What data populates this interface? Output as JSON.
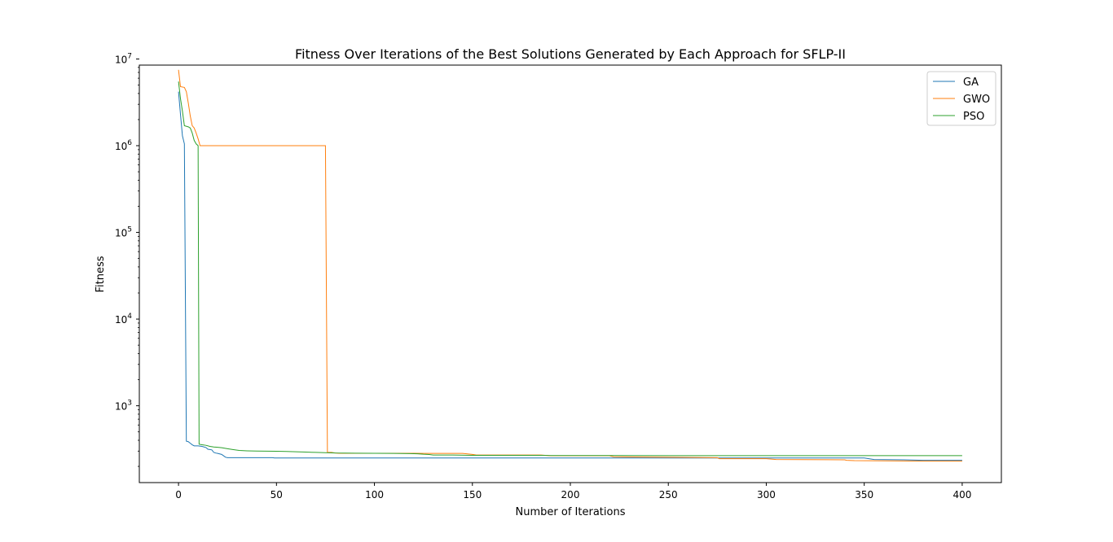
{
  "chart_data": {
    "type": "line",
    "title": "Fitness Over Iterations of the Best Solutions Generated by Each Approach for SFLP-II",
    "xlabel": "Number of Iterations",
    "ylabel": "Fitness",
    "xlim": [
      -20,
      420
    ],
    "ylim": [
      130,
      8500000
    ],
    "yscale": "log",
    "xticks": [
      0,
      50,
      100,
      150,
      200,
      250,
      300,
      350,
      400
    ],
    "xtick_labels": [
      "0",
      "50",
      "100",
      "150",
      "200",
      "250",
      "300",
      "350",
      "400"
    ],
    "yticks": [
      1000,
      10000,
      100000,
      1000000,
      10000000
    ],
    "ytick_labels": [
      {
        "base": "10",
        "exp": "3"
      },
      {
        "base": "10",
        "exp": "4"
      },
      {
        "base": "10",
        "exp": "5"
      },
      {
        "base": "10",
        "exp": "6"
      },
      {
        "base": "10",
        "exp": "7"
      }
    ],
    "grid": false,
    "legend_position": "top-right",
    "series": [
      {
        "name": "GA",
        "color": "#1f77b4",
        "points": [
          [
            0,
            4200000
          ],
          [
            1,
            2300000
          ],
          [
            2,
            1300000
          ],
          [
            3,
            1050000
          ],
          [
            4,
            390
          ],
          [
            5,
            385
          ],
          [
            6,
            370
          ],
          [
            7,
            355
          ],
          [
            8,
            345
          ],
          [
            10,
            345
          ],
          [
            12,
            340
          ],
          [
            14,
            330
          ],
          [
            15,
            315
          ],
          [
            17,
            310
          ],
          [
            18,
            290
          ],
          [
            19,
            285
          ],
          [
            20,
            282
          ],
          [
            22,
            275
          ],
          [
            23,
            265
          ],
          [
            24,
            255
          ],
          [
            25,
            252
          ],
          [
            48,
            252
          ],
          [
            49,
            250
          ],
          [
            350,
            250
          ],
          [
            355,
            240
          ],
          [
            370,
            238
          ],
          [
            380,
            235
          ],
          [
            400,
            235
          ]
        ]
      },
      {
        "name": "GWO",
        "color": "#ff7f0e",
        "points": [
          [
            0,
            7500000
          ],
          [
            1,
            4800000
          ],
          [
            3,
            4700000
          ],
          [
            4,
            4200000
          ],
          [
            5,
            3100000
          ],
          [
            6,
            2200000
          ],
          [
            7,
            1700000
          ],
          [
            8,
            1600000
          ],
          [
            9,
            1400000
          ],
          [
            10,
            1200000
          ],
          [
            11,
            1000000
          ],
          [
            75,
            1000000
          ],
          [
            76,
            290
          ],
          [
            78,
            290
          ],
          [
            80,
            285
          ],
          [
            82,
            283
          ],
          [
            100,
            283
          ],
          [
            110,
            283
          ],
          [
            120,
            283
          ],
          [
            125,
            282
          ],
          [
            140,
            282
          ],
          [
            145,
            282
          ],
          [
            150,
            275
          ],
          [
            152,
            270
          ],
          [
            185,
            270
          ],
          [
            190,
            265
          ],
          [
            220,
            265
          ],
          [
            222,
            258
          ],
          [
            250,
            255
          ],
          [
            275,
            252
          ],
          [
            276,
            245
          ],
          [
            300,
            245
          ],
          [
            305,
            240
          ],
          [
            340,
            238
          ],
          [
            341,
            235
          ],
          [
            345,
            233
          ],
          [
            360,
            232
          ],
          [
            380,
            230
          ],
          [
            400,
            230
          ]
        ]
      },
      {
        "name": "PSO",
        "color": "#2ca02c",
        "points": [
          [
            0,
            5500000
          ],
          [
            1,
            3500000
          ],
          [
            2,
            2500000
          ],
          [
            3,
            1700000
          ],
          [
            5,
            1650000
          ],
          [
            6,
            1600000
          ],
          [
            7,
            1400000
          ],
          [
            8,
            1150000
          ],
          [
            9,
            1050000
          ],
          [
            10,
            1000000
          ],
          [
            10.5,
            360
          ],
          [
            12,
            355
          ],
          [
            14,
            350
          ],
          [
            16,
            340
          ],
          [
            18,
            335
          ],
          [
            20,
            332
          ],
          [
            22,
            328
          ],
          [
            25,
            320
          ],
          [
            28,
            312
          ],
          [
            31,
            305
          ],
          [
            35,
            302
          ],
          [
            40,
            300
          ],
          [
            50,
            299
          ],
          [
            55,
            297
          ],
          [
            60,
            295
          ],
          [
            65,
            292
          ],
          [
            70,
            290
          ],
          [
            75,
            288
          ],
          [
            80,
            285
          ],
          [
            90,
            284
          ],
          [
            100,
            283
          ],
          [
            110,
            282
          ],
          [
            118,
            281
          ],
          [
            120,
            280
          ],
          [
            122,
            279
          ],
          [
            125,
            276
          ],
          [
            128,
            274
          ],
          [
            130,
            270
          ],
          [
            140,
            270
          ],
          [
            150,
            268
          ],
          [
            155,
            268
          ],
          [
            185,
            268
          ],
          [
            190,
            267
          ],
          [
            250,
            266
          ],
          [
            300,
            266
          ],
          [
            400,
            266
          ]
        ]
      }
    ]
  }
}
